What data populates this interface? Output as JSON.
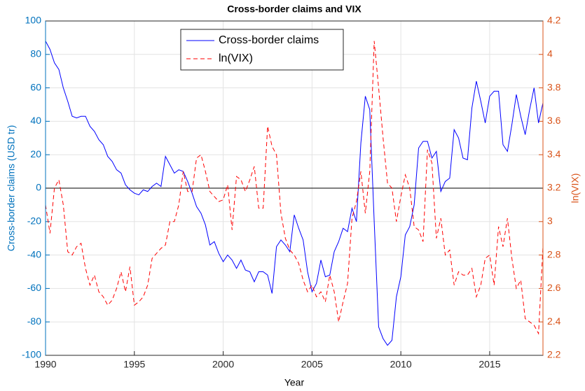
{
  "chart_data": {
    "type": "line",
    "title": "Cross-border claims and VIX",
    "xlabel": "Year",
    "ylabel": "Cross-border claims (USD tr)",
    "y2label": "ln(VIX)",
    "x": [
      1990,
      1990.25,
      1990.5,
      1990.75,
      1991,
      1991.25,
      1991.5,
      1991.75,
      1992,
      1992.25,
      1992.5,
      1992.75,
      1993,
      1993.25,
      1993.5,
      1993.75,
      1994,
      1994.25,
      1994.5,
      1994.75,
      1995,
      1995.25,
      1995.5,
      1995.75,
      1996,
      1996.25,
      1996.5,
      1996.75,
      1997,
      1997.25,
      1997.5,
      1997.75,
      1998,
      1998.25,
      1998.5,
      1998.75,
      1999,
      1999.25,
      1999.5,
      1999.75,
      2000,
      2000.25,
      2000.5,
      2000.75,
      2001,
      2001.25,
      2001.5,
      2001.75,
      2002,
      2002.25,
      2002.5,
      2002.75,
      2003,
      2003.25,
      2003.5,
      2003.75,
      2004,
      2004.25,
      2004.5,
      2004.75,
      2005,
      2005.25,
      2005.5,
      2005.75,
      2006,
      2006.25,
      2006.5,
      2006.75,
      2007,
      2007.25,
      2007.5,
      2007.75,
      2008,
      2008.25,
      2008.5,
      2008.75,
      2009,
      2009.25,
      2009.5,
      2009.75,
      2010,
      2010.25,
      2010.5,
      2010.75,
      2011,
      2011.25,
      2011.5,
      2011.75,
      2012,
      2012.25,
      2012.5,
      2012.75,
      2013,
      2013.25,
      2013.5,
      2013.75,
      2014,
      2014.25,
      2014.5,
      2014.75,
      2015,
      2015.25,
      2015.5,
      2015.75,
      2016,
      2016.25,
      2016.5,
      2016.75,
      2017,
      2017.25,
      2017.5,
      2017.75,
      2018
    ],
    "series": [
      {
        "name": "Cross-border claims",
        "color": "#0000ff",
        "dash": "none",
        "axis": "y",
        "values": [
          88,
          83,
          75,
          71,
          60,
          52,
          43,
          42,
          43,
          43,
          37,
          34,
          29,
          26,
          19,
          16,
          11,
          9,
          2,
          -1,
          -3,
          -4,
          -1,
          -2,
          1,
          3,
          1,
          19,
          14,
          9,
          11,
          10,
          4,
          -3,
          -11,
          -15,
          -22,
          -34,
          -32,
          -39,
          -44,
          -40,
          -43,
          -48,
          -43,
          -49,
          -50,
          -56,
          -50,
          -50,
          -52,
          -63,
          -35,
          -31,
          -34,
          -38,
          -16,
          -24,
          -31,
          -50,
          -62,
          -57,
          -43,
          -53,
          -52,
          -38,
          -32,
          -24,
          -26,
          -12,
          -20,
          27,
          55,
          47,
          -20,
          -83,
          -90,
          -94,
          -91,
          -65,
          -53,
          -28,
          -23,
          -10,
          24,
          28,
          28,
          18,
          22,
          -2,
          4,
          6,
          35,
          30,
          18,
          17,
          48,
          64,
          52,
          39,
          55,
          58,
          58,
          26,
          22,
          38,
          56,
          43,
          32,
          47,
          60,
          39,
          51
        ]
      },
      {
        "name": "ln(VIX)",
        "color": "#ff0000",
        "dash": "6,4",
        "axis": "y2",
        "values": [
          3.1,
          2.93,
          3.2,
          3.25,
          3.1,
          2.82,
          2.8,
          2.85,
          2.87,
          2.72,
          2.62,
          2.68,
          2.58,
          2.55,
          2.5,
          2.53,
          2.6,
          2.7,
          2.58,
          2.73,
          2.5,
          2.52,
          2.55,
          2.62,
          2.78,
          2.81,
          2.84,
          2.86,
          3.0,
          3.0,
          3.1,
          3.3,
          3.18,
          3.18,
          3.38,
          3.4,
          3.3,
          3.18,
          3.15,
          3.12,
          3.13,
          3.22,
          2.95,
          3.27,
          3.25,
          3.18,
          3.25,
          3.33,
          3.08,
          3.08,
          3.57,
          3.45,
          3.4,
          3.05,
          2.9,
          2.83,
          2.8,
          2.75,
          2.65,
          2.58,
          2.62,
          2.55,
          2.58,
          2.52,
          2.68,
          2.58,
          2.4,
          2.52,
          2.63,
          3.02,
          3.12,
          3.3,
          3.05,
          3.3,
          4.08,
          3.8,
          3.5,
          3.23,
          3.2,
          3.0,
          3.15,
          3.28,
          3.2,
          2.97,
          2.95,
          2.88,
          3.43,
          3.35,
          2.9,
          3.02,
          2.8,
          2.83,
          2.62,
          2.7,
          2.68,
          2.68,
          2.72,
          2.55,
          2.62,
          2.78,
          2.8,
          2.62,
          2.97,
          2.85,
          3.02,
          2.78,
          2.6,
          2.65,
          2.42,
          2.4,
          2.38,
          2.33,
          2.85
        ]
      }
    ],
    "xlim": [
      1990,
      2018
    ],
    "xticks": [
      1990,
      1995,
      2000,
      2005,
      2010,
      2015
    ],
    "ylim": [
      -100,
      100
    ],
    "yticks": [
      -100,
      -80,
      -60,
      -40,
      -20,
      0,
      20,
      40,
      60,
      80,
      100
    ],
    "y2lim": [
      2.2,
      4.2
    ],
    "y2ticks": [
      2.2,
      2.4,
      2.6,
      2.8,
      3,
      3.2,
      3.4,
      3.6,
      3.8,
      4,
      4.2
    ],
    "reference_line": 0,
    "grid": true,
    "legend": "north",
    "y_color": "#0072bd",
    "y2_color": "#d95319"
  }
}
